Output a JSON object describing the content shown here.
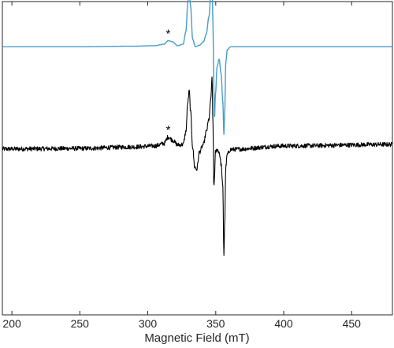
{
  "chart_data": {
    "type": "line",
    "title": "",
    "xlabel": "Magnetic Field (mT)",
    "ylabel": "",
    "xlim": [
      193,
      480
    ],
    "xticks": [
      200,
      250,
      300,
      350,
      400,
      450
    ],
    "y_ticks_shown": false,
    "grid": false,
    "legend": "none",
    "annotations": [
      {
        "text": "*",
        "series": "simulated",
        "x": 315
      },
      {
        "text": "*",
        "series": "experimental",
        "x": 315
      }
    ],
    "series": [
      {
        "id": "simulated",
        "color": "#4a9cc9",
        "offset": 2.0,
        "noise": false,
        "points": [
          [
            193,
            0
          ],
          [
            250,
            0
          ],
          [
            290,
            0.01
          ],
          [
            305,
            0.02
          ],
          [
            312,
            0.05
          ],
          [
            315,
            0.12
          ],
          [
            318,
            0.1
          ],
          [
            322,
            0.02
          ],
          [
            326,
            0.05
          ],
          [
            328,
            0.3
          ],
          [
            329.5,
            0.9
          ],
          [
            330.5,
            1.12
          ],
          [
            331.5,
            0.8
          ],
          [
            333,
            0.15
          ],
          [
            335,
            0.0
          ],
          [
            338,
            0.03
          ],
          [
            341,
            0.1
          ],
          [
            343,
            0.25
          ],
          [
            345,
            0.6
          ],
          [
            346.5,
            1.1
          ],
          [
            347.3,
            1.3
          ],
          [
            348,
            0.4
          ],
          [
            348.6,
            -0.8
          ],
          [
            349.1,
            -1.45
          ],
          [
            349.8,
            -0.95
          ],
          [
            351,
            -0.4
          ],
          [
            352.5,
            -0.25
          ],
          [
            354,
            -0.55
          ],
          [
            355.2,
            -1.1
          ],
          [
            356,
            -1.75
          ],
          [
            356.6,
            -1.3
          ],
          [
            357.4,
            -0.3
          ],
          [
            358.5,
            -0.06
          ],
          [
            361,
            0.0
          ],
          [
            400,
            0.0
          ],
          [
            480,
            0.0
          ]
        ]
      },
      {
        "id": "experimental",
        "color": "#000000",
        "offset": 0.0,
        "noise": true,
        "points": [
          [
            193,
            -0.04
          ],
          [
            250,
            -0.03
          ],
          [
            290,
            0.0
          ],
          [
            305,
            0.02
          ],
          [
            312,
            0.07
          ],
          [
            315,
            0.2
          ],
          [
            318,
            0.14
          ],
          [
            322,
            0.04
          ],
          [
            326,
            0.05
          ],
          [
            328,
            0.3
          ],
          [
            329.5,
            0.9
          ],
          [
            330.5,
            1.12
          ],
          [
            331.5,
            0.7
          ],
          [
            333,
            0.0
          ],
          [
            334.5,
            -0.4
          ],
          [
            336,
            -0.45
          ],
          [
            338,
            -0.1
          ],
          [
            341,
            0.05
          ],
          [
            343,
            0.3
          ],
          [
            345,
            0.55
          ],
          [
            346.5,
            1.0
          ],
          [
            347.3,
            1.38
          ],
          [
            348,
            0.4
          ],
          [
            348.6,
            -0.8
          ],
          [
            349.1,
            -0.6
          ],
          [
            349.8,
            -0.1
          ],
          [
            351,
            -0.05
          ],
          [
            352.5,
            -0.1
          ],
          [
            354,
            -0.35
          ],
          [
            355.2,
            -0.8
          ],
          [
            356,
            -2.15
          ],
          [
            356.6,
            -1.5
          ],
          [
            357.4,
            -0.4
          ],
          [
            358.5,
            -0.15
          ],
          [
            361,
            -0.05
          ],
          [
            400,
            0.02
          ],
          [
            480,
            0.05
          ]
        ]
      }
    ]
  }
}
